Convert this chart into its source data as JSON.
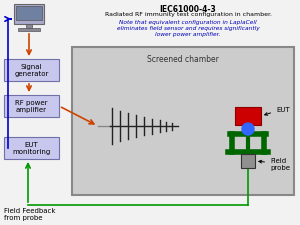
{
  "title_line1": "IEC61000-4-3",
  "title_line2": "Radiated RF immunity test configuration in chamber.",
  "note_line1": "Note that equivalent configuration in LaplaCell",
  "note_line2": "eliminates field sensor and requires significantly",
  "note_line3": "lower power amplifier.",
  "screened_chamber_label": "Screened chamber",
  "eut_label": "EUT",
  "field_probe_label": "Field\nprobe",
  "feedback_label": "Field Feedback\nfrom probe",
  "box_signal_gen": "Signal\ngenerator",
  "box_rf_amp": "RF power\namplifier",
  "box_eut_mon": "EUT\nmonitoring",
  "title_color": "#000000",
  "note_color": "#0000bb",
  "box_fill": "#c8c8ee",
  "box_edge": "#7070aa",
  "chamber_fill": "#cccccc",
  "chamber_edge": "#888888",
  "arrow_orange": "#cc4400",
  "arrow_green": "#009900",
  "arrow_blue": "#0000cc",
  "eut_color": "#cc0000",
  "stand_color": "#006600",
  "probe_color": "#909090",
  "ball_color": "#3366ff",
  "antenna_color": "#222222",
  "bg_color": "#f2f2f2"
}
